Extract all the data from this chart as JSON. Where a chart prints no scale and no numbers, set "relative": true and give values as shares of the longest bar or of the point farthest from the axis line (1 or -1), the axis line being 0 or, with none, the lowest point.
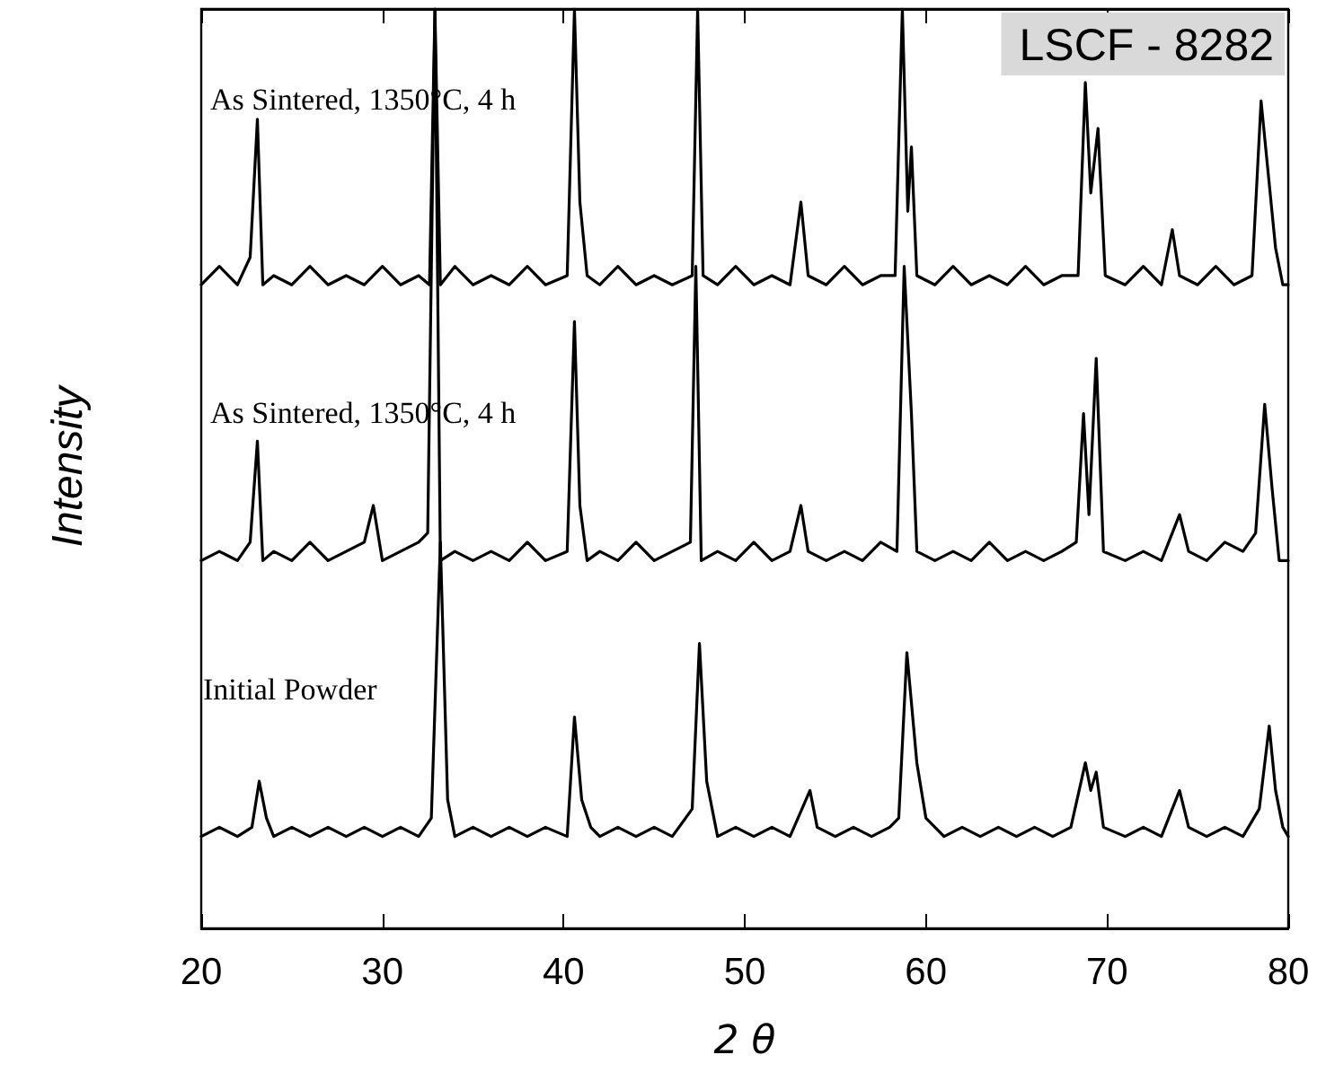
{
  "chart_data": {
    "type": "line",
    "relative": true,
    "xlabel": "2 θ",
    "ylabel": "Intensity",
    "xlim": [
      20,
      80
    ],
    "xticks": [
      20,
      30,
      40,
      50,
      60,
      70,
      80
    ],
    "grid": false,
    "marker": "none",
    "line_style": "solid",
    "annotations": [
      "LSCF - 8282"
    ],
    "series": [
      {
        "name": "As Sintered, 1350°C, 4 h",
        "color": "#000000",
        "x": [
          20,
          21,
          22,
          22.7,
          23.1,
          23.4,
          24,
          25,
          26,
          27,
          28,
          29,
          30,
          31,
          32,
          32.6,
          32.9,
          33.2,
          34,
          35,
          36,
          37,
          38,
          39,
          40.2,
          40.6,
          40.9,
          41.3,
          42,
          43,
          44,
          45,
          46,
          47.1,
          47.4,
          47.7,
          48.5,
          49.5,
          50.5,
          51.5,
          52.5,
          53.1,
          53.5,
          54.5,
          55.5,
          56.5,
          57.5,
          58.3,
          58.7,
          59.0,
          59.2,
          59.5,
          60.5,
          61.5,
          62.5,
          63.5,
          64.5,
          65.5,
          66.5,
          67.5,
          68.4,
          68.8,
          69.1,
          69.5,
          69.9,
          71,
          72,
          73,
          73.6,
          74,
          75,
          76,
          77,
          78,
          78.5,
          78.9,
          79.3,
          79.7,
          80
        ],
        "values": [
          0.7,
          0.72,
          0.7,
          0.73,
          0.88,
          0.7,
          0.71,
          0.7,
          0.72,
          0.7,
          0.71,
          0.7,
          0.72,
          0.7,
          0.71,
          0.7,
          1.0,
          0.7,
          0.72,
          0.7,
          0.71,
          0.7,
          0.72,
          0.7,
          0.71,
          1.0,
          0.79,
          0.71,
          0.7,
          0.72,
          0.7,
          0.71,
          0.7,
          0.71,
          1.0,
          0.71,
          0.7,
          0.72,
          0.7,
          0.71,
          0.7,
          0.79,
          0.71,
          0.7,
          0.72,
          0.7,
          0.71,
          0.71,
          1.0,
          0.78,
          0.85,
          0.71,
          0.7,
          0.72,
          0.7,
          0.71,
          0.7,
          0.72,
          0.7,
          0.71,
          0.71,
          0.92,
          0.8,
          0.87,
          0.71,
          0.7,
          0.72,
          0.7,
          0.76,
          0.71,
          0.7,
          0.72,
          0.7,
          0.71,
          0.9,
          0.82,
          0.74,
          0.7,
          0.7
        ]
      },
      {
        "name": "As Sintered, 1350°C, 4 h",
        "color": "#000000",
        "x": [
          20,
          21,
          22,
          22.7,
          23.1,
          23.4,
          24,
          25,
          26,
          27,
          28,
          29,
          29.5,
          30,
          31,
          32,
          32.5,
          32.9,
          33.2,
          34,
          35,
          36,
          37,
          38,
          39,
          40.2,
          40.6,
          40.9,
          41.3,
          42,
          43,
          44,
          45,
          46,
          47.0,
          47.3,
          47.6,
          48.5,
          49.5,
          50.5,
          51.5,
          52.5,
          53.1,
          53.5,
          54.5,
          55.5,
          56.5,
          57.5,
          58.4,
          58.8,
          59.2,
          59.5,
          60.5,
          61.5,
          62.5,
          63.5,
          64.5,
          65.5,
          66.5,
          67.5,
          68.3,
          68.7,
          69.0,
          69.4,
          69.8,
          71,
          72,
          73,
          74,
          74.5,
          75.5,
          76.5,
          77.5,
          78.2,
          78.7,
          79.1,
          79.5,
          80
        ],
        "values": [
          0.4,
          0.41,
          0.4,
          0.42,
          0.53,
          0.4,
          0.41,
          0.4,
          0.42,
          0.4,
          0.41,
          0.42,
          0.46,
          0.4,
          0.41,
          0.42,
          0.43,
          1.0,
          0.4,
          0.41,
          0.4,
          0.41,
          0.4,
          0.42,
          0.4,
          0.41,
          0.66,
          0.46,
          0.4,
          0.41,
          0.4,
          0.42,
          0.4,
          0.41,
          0.42,
          0.72,
          0.4,
          0.41,
          0.4,
          0.42,
          0.4,
          0.41,
          0.46,
          0.41,
          0.4,
          0.41,
          0.4,
          0.42,
          0.41,
          0.72,
          0.56,
          0.41,
          0.4,
          0.41,
          0.4,
          0.42,
          0.4,
          0.41,
          0.4,
          0.41,
          0.42,
          0.56,
          0.45,
          0.62,
          0.41,
          0.4,
          0.41,
          0.4,
          0.45,
          0.41,
          0.4,
          0.42,
          0.41,
          0.43,
          0.57,
          0.48,
          0.4,
          0.4
        ]
      },
      {
        "name": "Initial Powder",
        "color": "#000000",
        "x": [
          20,
          21,
          22,
          22.8,
          23.2,
          23.6,
          24,
          25,
          26,
          27,
          28,
          29,
          30,
          31,
          32,
          32.7,
          33.2,
          33.6,
          34,
          35,
          36,
          37,
          38,
          39,
          40.2,
          40.6,
          41.0,
          41.5,
          42,
          43,
          44,
          45,
          46,
          47.1,
          47.5,
          47.9,
          48.5,
          49.5,
          50.5,
          51.5,
          52.5,
          53.6,
          54,
          55,
          56,
          57,
          58,
          58.5,
          58.95,
          59.5,
          60,
          61,
          62,
          63,
          64,
          65,
          66,
          67,
          68,
          68.8,
          69.1,
          69.4,
          69.8,
          71,
          72,
          73,
          74,
          74.5,
          75.5,
          76.5,
          77.5,
          78.4,
          78.95,
          79.3,
          79.7,
          80
        ],
        "values": [
          0.1,
          0.11,
          0.1,
          0.11,
          0.16,
          0.12,
          0.1,
          0.11,
          0.1,
          0.11,
          0.1,
          0.11,
          0.1,
          0.11,
          0.1,
          0.12,
          0.42,
          0.14,
          0.1,
          0.11,
          0.1,
          0.11,
          0.1,
          0.11,
          0.1,
          0.23,
          0.14,
          0.11,
          0.1,
          0.11,
          0.1,
          0.11,
          0.1,
          0.13,
          0.31,
          0.16,
          0.1,
          0.11,
          0.1,
          0.11,
          0.1,
          0.15,
          0.11,
          0.1,
          0.11,
          0.1,
          0.11,
          0.12,
          0.3,
          0.18,
          0.12,
          0.1,
          0.11,
          0.1,
          0.11,
          0.1,
          0.11,
          0.1,
          0.11,
          0.18,
          0.15,
          0.17,
          0.11,
          0.1,
          0.11,
          0.1,
          0.15,
          0.11,
          0.1,
          0.11,
          0.1,
          0.13,
          0.22,
          0.15,
          0.11,
          0.1
        ]
      }
    ]
  }
}
